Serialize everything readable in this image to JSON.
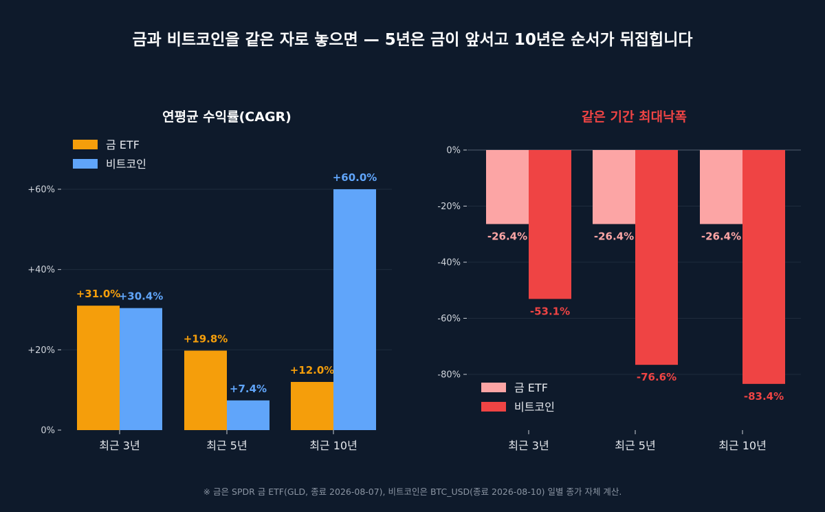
{
  "title": "금과 비트코인을 같은 자로 놓으면 — 5년은 금이 앞서고 10년은 순서가 뒤집힙니다",
  "footnote": "※ 금은 SPDR 금 ETF(GLD, 종료 2026-08-07), 비트코인은 BTC_USD(종료 2026-08-10) 일별 종가 자체 계산.",
  "chart_data": [
    {
      "type": "bar",
      "title": "연평균 수익률(CAGR)",
      "title_color": "#ffffff",
      "categories": [
        "최근 3년",
        "최근 5년",
        "최근 10년"
      ],
      "series": [
        {
          "name": "금 ETF",
          "color": "#f59e0b",
          "values": [
            31.0,
            19.8,
            12.0
          ],
          "labels": [
            "+31.0%",
            "+19.8%",
            "+12.0%"
          ]
        },
        {
          "name": "비트코인",
          "color": "#60a5fa",
          "values": [
            30.4,
            7.4,
            60.0
          ],
          "labels": [
            "+30.4%",
            "+7.4%",
            "+60.0%"
          ]
        }
      ],
      "yticks": [
        0,
        20,
        40,
        60
      ],
      "ytick_labels": [
        "0%",
        "+20%",
        "+40%",
        "+60%"
      ],
      "ylim": [
        0,
        70
      ],
      "grid": true,
      "legend": "top-left"
    },
    {
      "type": "bar",
      "title": "같은 기간 최대낙폭",
      "title_color": "#ef4444",
      "categories": [
        "최근 3년",
        "최근 5년",
        "최근 10년"
      ],
      "series": [
        {
          "name": "금 ETF",
          "color": "#fca5a5",
          "values": [
            -26.4,
            -26.4,
            -26.4
          ],
          "labels": [
            "-26.4%",
            "-26.4%",
            "-26.4%"
          ]
        },
        {
          "name": "비트코인",
          "color": "#ef4444",
          "values": [
            -53.1,
            -76.6,
            -83.4
          ],
          "labels": [
            "-53.1%",
            "-76.6%",
            "-83.4%"
          ]
        }
      ],
      "yticks": [
        0,
        -20,
        -40,
        -60,
        -80
      ],
      "ytick_labels": [
        "0%",
        "-20%",
        "-40%",
        "-60%",
        "-80%"
      ],
      "ylim": [
        -100,
        0
      ],
      "grid": true,
      "legend": "bottom-left"
    }
  ]
}
